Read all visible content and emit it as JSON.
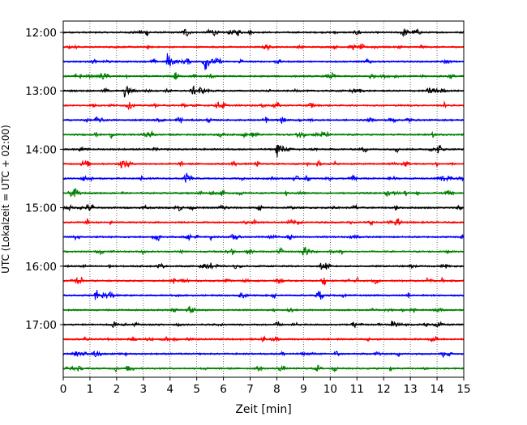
{
  "chart_data": {
    "type": "line",
    "title": "",
    "xlabel": "Zeit  [min]",
    "ylabel": "UTC (Lokalzeit = UTC + 02:00)",
    "xlim": [
      0,
      15
    ],
    "x_ticks": [
      0,
      1,
      2,
      3,
      4,
      5,
      6,
      7,
      8,
      9,
      10,
      11,
      12,
      13,
      14,
      15
    ],
    "x_tick_labels": [
      "0",
      "1",
      "2",
      "3",
      "4",
      "5",
      "6",
      "7",
      "8",
      "9",
      "10",
      "11",
      "12",
      "13",
      "14",
      "15"
    ],
    "y_ticks": [
      "12:00",
      "13:00",
      "14:00",
      "15:00",
      "16:00",
      "17:00"
    ],
    "trace_start": "12:00",
    "trace_interval_minutes": 15,
    "trace_count": 24,
    "trace_colors": [
      "#000000",
      "#ff0000",
      "#0000ff",
      "#008000"
    ],
    "grid": "vertical dotted",
    "events": [
      {
        "trace": 0,
        "minute": 12.7,
        "amplitude": 0.45
      },
      {
        "trace": 2,
        "minute": 3.9,
        "amplitude": 0.7
      },
      {
        "trace": 2,
        "minute": 5.3,
        "amplitude": 0.8
      },
      {
        "trace": 4,
        "minute": 2.3,
        "amplitude": 0.6
      },
      {
        "trace": 4,
        "minute": 5.1,
        "amplitude": 0.35
      },
      {
        "trace": 8,
        "minute": 8.0,
        "amplitude": 0.85
      },
      {
        "trace": 12,
        "minute": 5.9,
        "amplitude": 0.3
      },
      {
        "trace": 15,
        "minute": 9.0,
        "amplitude": 0.45
      },
      {
        "trace": 18,
        "minute": 1.2,
        "amplitude": 0.3
      },
      {
        "trace": 20,
        "minute": 12.3,
        "amplitude": 0.6
      }
    ]
  }
}
